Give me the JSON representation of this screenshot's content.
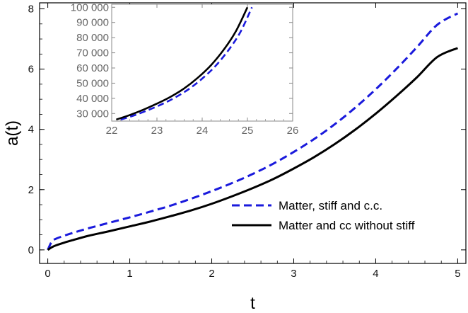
{
  "chart_data": [
    {
      "type": "line",
      "xlabel": "t",
      "ylabel": "a(t)",
      "xlim": [
        -0.1,
        5.1
      ],
      "ylim": [
        -0.45,
        8.2
      ],
      "xticks": [
        0,
        1,
        2,
        3,
        4,
        5
      ],
      "yticks": [
        0,
        2,
        4,
        6,
        8
      ],
      "grid": false,
      "legend_position": "bottom-right",
      "series": [
        {
          "name": "Matter, stiff and c.c.",
          "color": "#1a1adc",
          "dash": "dashed",
          "x": [
            0,
            0.05,
            0.1,
            0.2,
            0.3,
            0.5,
            0.75,
            1,
            1.25,
            1.5,
            1.75,
            2,
            2.25,
            2.5,
            2.75,
            3,
            3.25,
            3.5,
            3.75,
            4,
            4.25,
            4.5,
            4.75,
            5
          ],
          "y": [
            0,
            0.28,
            0.37,
            0.47,
            0.56,
            0.72,
            0.9,
            1.08,
            1.27,
            1.47,
            1.7,
            1.95,
            2.22,
            2.52,
            2.86,
            3.25,
            3.68,
            4.17,
            4.72,
            5.33,
            6.0,
            6.72,
            7.47,
            7.85
          ]
        },
        {
          "name": "Matter and cc without stiff",
          "color": "#000000",
          "dash": "solid",
          "x": [
            0,
            0.05,
            0.1,
            0.2,
            0.3,
            0.5,
            0.75,
            1,
            1.25,
            1.5,
            1.75,
            2,
            2.25,
            2.5,
            2.75,
            3,
            3.25,
            3.5,
            3.75,
            4,
            4.25,
            4.5,
            4.75,
            5
          ],
          "y": [
            0,
            0.09,
            0.15,
            0.24,
            0.32,
            0.47,
            0.62,
            0.78,
            0.94,
            1.12,
            1.31,
            1.53,
            1.78,
            2.05,
            2.35,
            2.7,
            3.08,
            3.51,
            3.99,
            4.52,
            5.1,
            5.72,
            6.4,
            6.7
          ]
        }
      ]
    },
    {
      "type": "line",
      "role": "inset",
      "xlim": [
        22,
        26
      ],
      "ylim": [
        25000,
        102000
      ],
      "xticks": [
        22,
        23,
        24,
        25,
        26
      ],
      "yticks": [
        30000,
        40000,
        50000,
        60000,
        70000,
        80000,
        90000,
        100000
      ],
      "xtick_labels": [
        "22",
        "23",
        "24",
        "25",
        "26"
      ],
      "ytick_labels": [
        "30 000",
        "40 000",
        "50 000",
        "60 000",
        "70 000",
        "80 000",
        "90 000",
        "100 000"
      ],
      "grid": false,
      "series": [
        {
          "name": "Matter, stiff and c.c.",
          "color": "#1a1adc",
          "dash": "dashed",
          "x": [
            22.2,
            22.5,
            22.8,
            23.1,
            23.4,
            23.7,
            24.0,
            24.3,
            24.6,
            24.85,
            25.1
          ],
          "y": [
            26000,
            28800,
            32200,
            36000,
            40500,
            46000,
            53000,
            61500,
            72500,
            84000,
            100000
          ]
        },
        {
          "name": "Matter and cc without stiff",
          "color": "#000000",
          "dash": "solid",
          "x": [
            22.1,
            22.4,
            22.7,
            23.0,
            23.3,
            23.6,
            23.9,
            24.2,
            24.5,
            24.75,
            25.0
          ],
          "y": [
            26000,
            29000,
            32500,
            36500,
            41000,
            46500,
            53500,
            62000,
            73000,
            84500,
            100000
          ]
        }
      ]
    }
  ]
}
